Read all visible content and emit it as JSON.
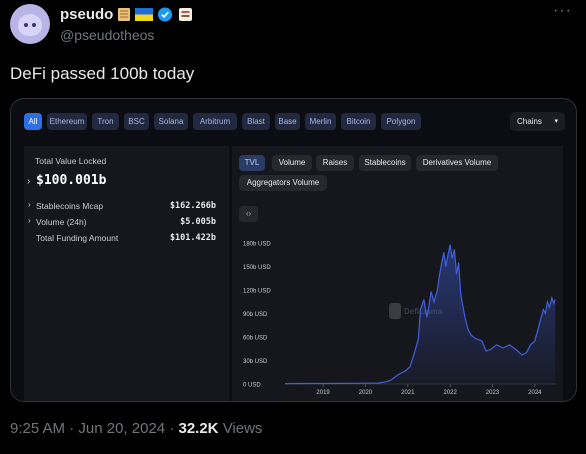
{
  "tweet": {
    "display_name": "pseudo",
    "handle": "@pseudotheos",
    "more_icon": "ellipsis-icon",
    "text": "DeFi passed 100b today",
    "time": "9:25 AM",
    "date": "Jun 20, 2024",
    "sep": "·",
    "views_count": "32.2K",
    "views_label": "Views"
  },
  "card": {
    "chain_filters": [
      "All",
      "Ethereum",
      "Tron",
      "BSC",
      "Solana",
      "Arbitrum",
      "Blast",
      "Base",
      "Merlin",
      "Bitcoin",
      "Polygon"
    ],
    "chains_dropdown": "Chains",
    "tvl_label": "Total Value Locked",
    "tvl_value": "$100.001b",
    "stats": [
      {
        "label": "Stablecoins Mcap",
        "value": "$162.266b"
      },
      {
        "label": "Volume (24h)",
        "value": "$5.005b"
      },
      {
        "label": "Total Funding Amount",
        "value": "$101.422b"
      }
    ],
    "tabs": [
      "TVL",
      "Volume",
      "Raises",
      "Stablecoins",
      "Derivatives Volume",
      "Aggregators Volume"
    ],
    "embed_icon": "code-icon",
    "watermark": "DefiLlama"
  },
  "chart_data": {
    "type": "area",
    "y_tick_labels": [
      "0 USD",
      "30b USD",
      "60b USD",
      "90b USD",
      "120b USD",
      "150b USD",
      "180b USD"
    ],
    "y_ticks": [
      0,
      30,
      60,
      90,
      120,
      150,
      180
    ],
    "ylim": [
      0,
      180
    ],
    "x_tick_labels": [
      "2019",
      "2020",
      "2021",
      "2022",
      "2023",
      "2024"
    ],
    "x_ticks": [
      2019,
      2020,
      2021,
      2022,
      2023,
      2024
    ],
    "xlim": [
      2018.1,
      2024.5
    ],
    "series_color": "#3f5fe0",
    "series": [
      {
        "x": [
          2018.1,
          2018.5,
          2019.0,
          2019.5,
          2019.9,
          2020.3,
          2020.5,
          2020.6,
          2020.75,
          2020.85,
          2020.95,
          2021.05,
          2021.15,
          2021.25,
          2021.3,
          2021.38,
          2021.45,
          2021.5,
          2021.55,
          2021.62,
          2021.7,
          2021.75,
          2021.8,
          2021.85,
          2021.9,
          2021.95,
          2022.0,
          2022.05,
          2022.1,
          2022.15,
          2022.2,
          2022.25,
          2022.3,
          2022.35,
          2022.42,
          2022.5,
          2022.6,
          2022.75,
          2022.85,
          2022.95,
          2023.1,
          2023.25,
          2023.4,
          2023.55,
          2023.7,
          2023.8,
          2023.9,
          2024.0,
          2024.1,
          2024.15,
          2024.2,
          2024.25,
          2024.3,
          2024.35,
          2024.4,
          2024.45,
          2024.48
        ],
        "y": [
          0.5,
          0.6,
          0.7,
          0.8,
          0.9,
          1.2,
          3,
          5,
          11,
          14,
          17,
          22,
          38,
          58,
          95,
          108,
          85,
          100,
          118,
          105,
          120,
          140,
          155,
          168,
          150,
          165,
          178,
          160,
          172,
          140,
          155,
          115,
          100,
          85,
          70,
          62,
          58,
          55,
          42,
          44,
          50,
          46,
          50,
          44,
          37,
          40,
          50,
          55,
          75,
          85,
          95,
          90,
          105,
          98,
          110,
          103,
          108
        ]
      }
    ]
  }
}
